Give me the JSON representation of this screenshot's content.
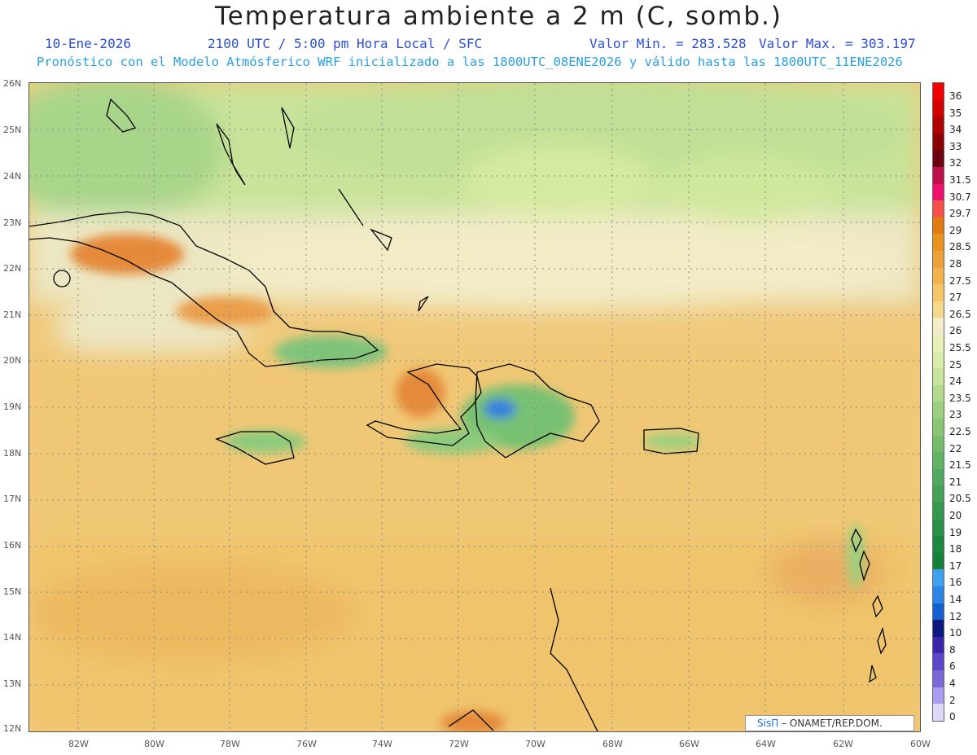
{
  "title": "Temperatura ambiente a 2 m (C, somb.)",
  "subtitle": {
    "date": "10-Ene-2026",
    "time": "2100 UTC / 5:00 pm Hora Local / SFC",
    "vmin": "Valor Min. = 283.528",
    "vmax": "Valor Max. = 303.197"
  },
  "forecast_note": "Pronóstico con el Modelo Atmósferico WRF inicializado a las 1800UTC_08ENE2026 y válido hasta las  1800UTC_11ENE2026",
  "axes": {
    "lat_labels": [
      "26N",
      "25N",
      "24N",
      "23N",
      "22N",
      "21N",
      "20N",
      "19N",
      "18N",
      "17N",
      "16N",
      "15N",
      "14N",
      "13N",
      "12N"
    ],
    "lon_labels": [
      "82W",
      "80W",
      "78W",
      "76W",
      "74W",
      "72W",
      "70W",
      "68W",
      "66W",
      "64W",
      "62W",
      "60W"
    ]
  },
  "colorbar": {
    "labels": [
      "36",
      "35",
      "34",
      "33",
      "32",
      "31.5",
      "30.7",
      "29.7",
      "29",
      "28.5",
      "28",
      "27.5",
      "27",
      "26.5",
      "26",
      "25.5",
      "25",
      "24",
      "23.5",
      "23",
      "22.5",
      "22",
      "21.5",
      "21",
      "20.5",
      "20",
      "19",
      "18",
      "17",
      "16",
      "14",
      "12",
      "10",
      "8",
      "6",
      "4",
      "2",
      "0"
    ],
    "colors": [
      "#f00000",
      "#d50000",
      "#b00000",
      "#8b0000",
      "#6b0010",
      "#c0104a",
      "#ef1070",
      "#f5504a",
      "#e07a10",
      "#e8931e",
      "#eda13a",
      "#f2b24e",
      "#f4c66a",
      "#f5d98a",
      "#f2ecc8",
      "#e8f0b8",
      "#d9ecaa",
      "#c8e49a",
      "#b2da8a",
      "#9cd07e",
      "#88c674",
      "#74bc6a",
      "#62b264",
      "#52a85c",
      "#44a056",
      "#369850",
      "#2a9048",
      "#1a8840",
      "#148038",
      "#40a0f0",
      "#2b84e6",
      "#1460d0",
      "#0c1a80",
      "#3a26a8",
      "#5a46c8",
      "#7a68d8",
      "#a89cee",
      "#dcd8fa"
    ]
  },
  "credit": {
    "logo": "SisΠ",
    "text": " – ONAMET/REP.DOM."
  }
}
